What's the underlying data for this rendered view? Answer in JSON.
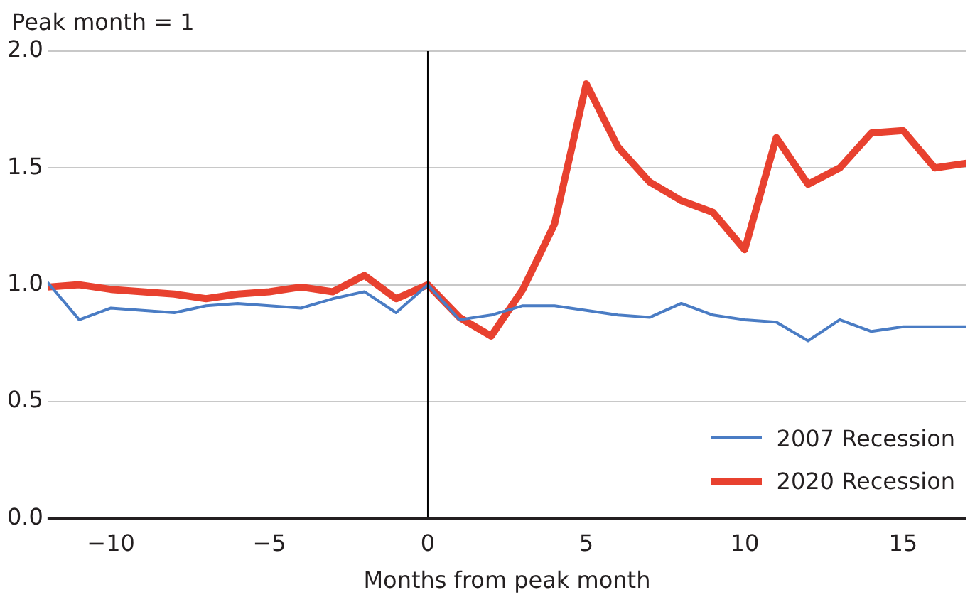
{
  "chart_data": {
    "type": "line",
    "ylabel": "Peak month = 1",
    "xlabel": "Months from peak month",
    "x": [
      -12,
      -11,
      -10,
      -9,
      -8,
      -7,
      -6,
      -5,
      -4,
      -3,
      -2,
      -1,
      0,
      1,
      2,
      3,
      4,
      5,
      6,
      7,
      8,
      9,
      10,
      11,
      12,
      13,
      14,
      15,
      16,
      17
    ],
    "series": [
      {
        "name": "2007 Recession",
        "color": "#4a7cc4",
        "values": [
          1.01,
          0.85,
          0.9,
          0.89,
          0.88,
          0.91,
          0.92,
          0.91,
          0.9,
          0.94,
          0.97,
          0.88,
          1.0,
          0.85,
          0.87,
          0.91,
          0.91,
          0.89,
          0.87,
          0.86,
          0.92,
          0.87,
          0.85,
          0.84,
          0.76,
          0.85,
          0.8,
          0.82,
          0.82,
          0.82
        ]
      },
      {
        "name": "2020 Recession",
        "color": "#e8412f",
        "values": [
          0.99,
          1.0,
          0.98,
          0.97,
          0.96,
          0.94,
          0.96,
          0.97,
          0.99,
          0.97,
          1.04,
          0.94,
          1.0,
          0.86,
          0.78,
          0.98,
          1.26,
          1.86,
          1.59,
          1.44,
          1.36,
          1.31,
          1.15,
          1.63,
          1.43,
          1.5,
          1.65,
          1.66,
          1.5,
          1.52
        ]
      }
    ],
    "xlim": [
      -12,
      17
    ],
    "xticks": [
      {
        "value": -10,
        "label": "−10"
      },
      {
        "value": -5,
        "label": "−5"
      },
      0,
      5,
      10,
      15
    ],
    "ylim": [
      0,
      2
    ],
    "yticks": [
      {
        "value": 0,
        "label": "0.0"
      },
      0.5,
      {
        "value": 1,
        "label": "1.0"
      },
      1.5,
      {
        "value": 2,
        "label": "2.0"
      }
    ],
    "ref_lines": [
      {
        "axis": "x",
        "value": 0,
        "color": "#000000"
      }
    ],
    "grid": "y",
    "legend": "bottom right",
    "marker": "none",
    "line_style": "solid"
  }
}
